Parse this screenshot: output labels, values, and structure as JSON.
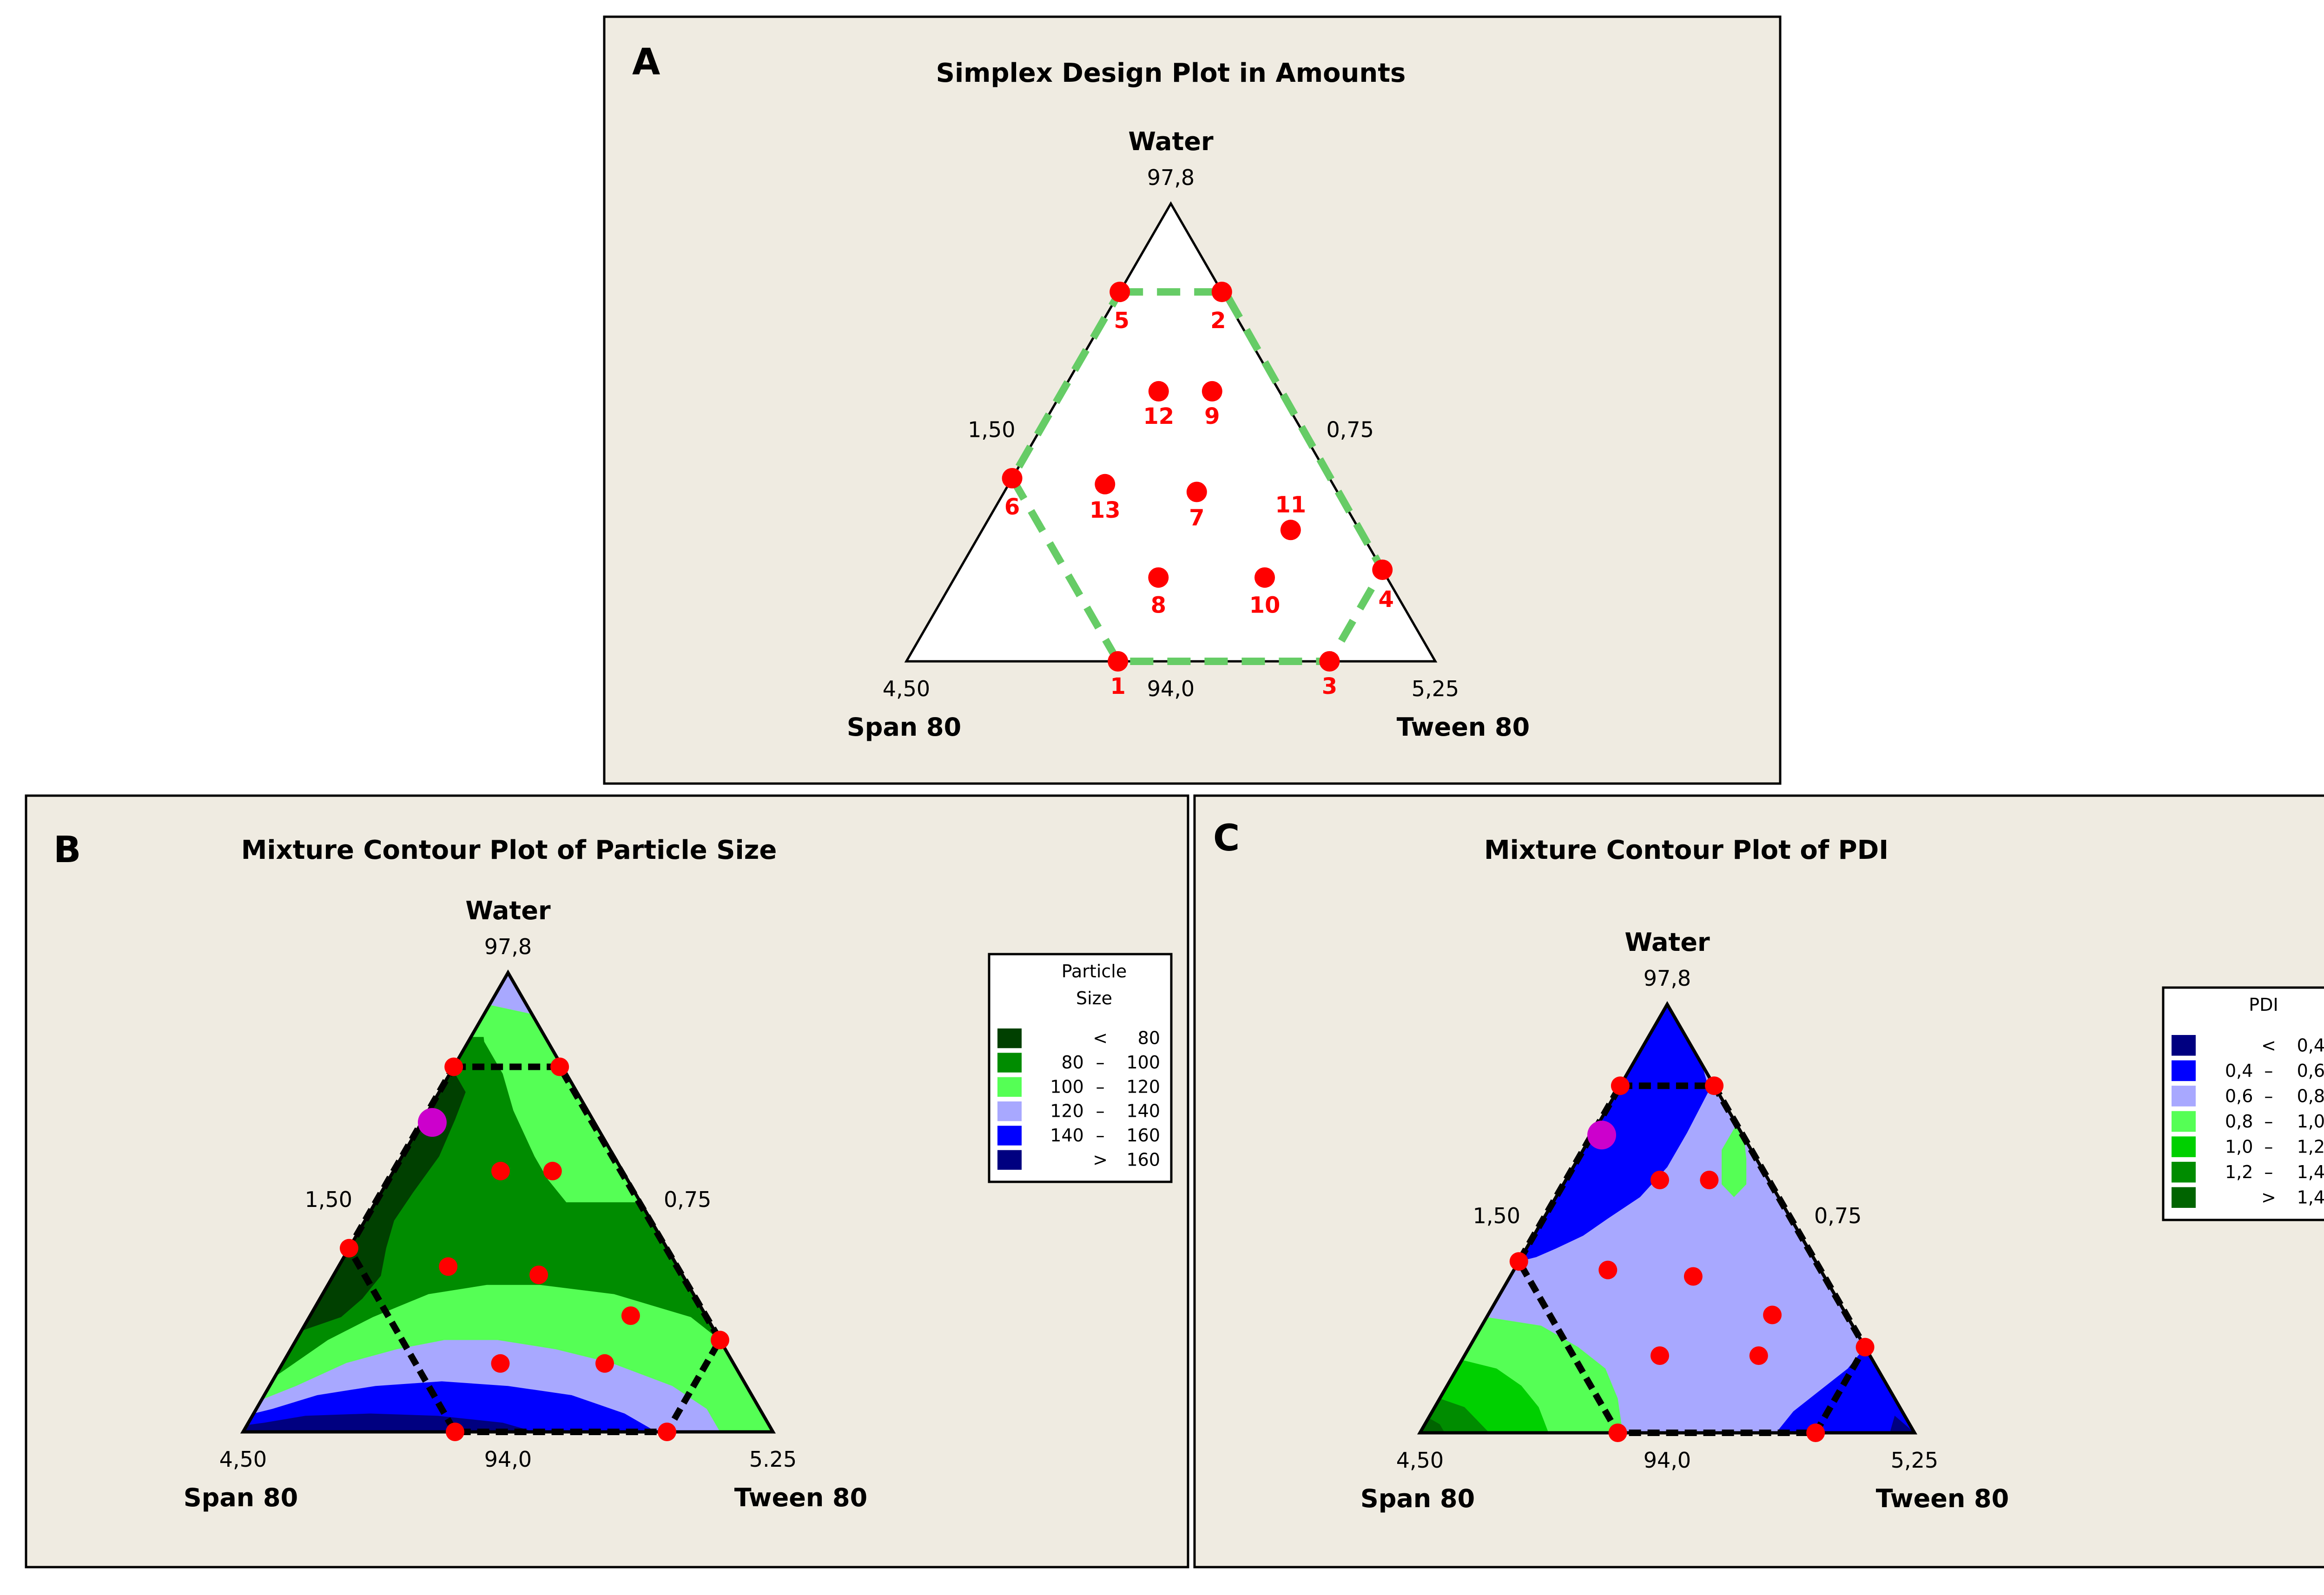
{
  "figure": {
    "background": "#efebe1",
    "point_color": "#ff0000",
    "optimum_color": "#cc00cc",
    "constraint_color_A": "#66cc66",
    "constraint_color_BC": "#000000"
  },
  "chart_data": [
    {
      "id": "A",
      "panel_letter": "A",
      "type": "scatter",
      "subtype": "ternary",
      "title": "Simplex Design Plot in Amounts",
      "components": {
        "top": "Water",
        "left": "Span 80",
        "right": "Tween 80"
      },
      "tick_labels": {
        "apex": "97,8",
        "left_vertex": "4,50",
        "right_vertex": "5,25",
        "base_mid": "94,0",
        "left_mid": "1,50",
        "right_mid": "0,75"
      },
      "coordinate_note": "points as pseudo-component fractions [water, tween]; span = 1 - water - tween",
      "constraint_region": [
        [
          0.807,
          0.0
        ],
        [
          0.807,
          0.199
        ],
        [
          0.2,
          0.8
        ],
        [
          0.0,
          0.8
        ],
        [
          0.0,
          0.4
        ],
        [
          0.4,
          0.0
        ]
      ],
      "points": [
        {
          "label": "1",
          "water": 0.0,
          "tween": 0.4
        },
        {
          "label": "2",
          "water": 0.807,
          "tween": 0.193
        },
        {
          "label": "3",
          "water": 0.0,
          "tween": 0.8
        },
        {
          "label": "4",
          "water": 0.2,
          "tween": 0.8
        },
        {
          "label": "5",
          "water": 0.807,
          "tween": 0.0
        },
        {
          "label": "6",
          "water": 0.4,
          "tween": 0.0
        },
        {
          "label": "7",
          "water": 0.37,
          "tween": 0.364
        },
        {
          "label": "8",
          "water": 0.183,
          "tween": 0.385
        },
        {
          "label": "9",
          "water": 0.59,
          "tween": 0.283
        },
        {
          "label": "10",
          "water": 0.183,
          "tween": 0.586
        },
        {
          "label": "11",
          "water": 0.287,
          "tween": 0.583
        },
        {
          "label": "12",
          "water": 0.59,
          "tween": 0.182
        },
        {
          "label": "13",
          "water": 0.387,
          "tween": 0.182
        }
      ]
    },
    {
      "id": "B",
      "panel_letter": "B",
      "type": "heatmap",
      "subtype": "ternary-contour",
      "title": "Mixture Contour Plot of Particle Size",
      "components": {
        "top": "Water",
        "left": "Span 80",
        "right": "Tween 80"
      },
      "tick_labels": {
        "apex": "97,8",
        "left_vertex": "4,50",
        "right_vertex": "5.25",
        "base_mid": "94,0",
        "left_mid": "1,50",
        "right_mid": "0,75"
      },
      "legend": {
        "title_lines": [
          "Particle",
          "Size"
        ],
        "placement": "right",
        "levels": [
          {
            "low": "",
            "op": "<",
            "high": "80",
            "color": "#004000"
          },
          {
            "low": "80",
            "op": "–",
            "high": "100",
            "color": "#008c00"
          },
          {
            "low": "100",
            "op": "–",
            "high": "120",
            "color": "#55ff55"
          },
          {
            "low": "120",
            "op": "–",
            "high": "140",
            "color": "#a8a8ff"
          },
          {
            "low": "140",
            "op": "–",
            "high": "160",
            "color": "#0000ff"
          },
          {
            "low": "",
            "op": ">",
            "high": "160",
            "color": "#000080"
          }
        ]
      },
      "regions": [
        {
          "level": "80–100",
          "color": "#008c00",
          "poly": [
            [
              0,
              0
            ],
            [
              0,
              1
            ],
            [
              1,
              0
            ]
          ]
        },
        {
          "level": "100–120",
          "color": "#55ff55",
          "poly": [
            [
              0.86,
              0.0
            ],
            [
              0.86,
              0.14
            ],
            [
              1.0,
              0.0
            ]
          ]
        },
        {
          "level": "100–120",
          "color": "#55ff55",
          "poly": [
            [
              0.9,
              0.0
            ],
            [
              0.85,
              0.03
            ],
            [
              0.78,
              0.1
            ],
            [
              0.7,
              0.16
            ],
            [
              0.6,
              0.25
            ],
            [
              0.55,
              0.3
            ],
            [
              0.5,
              0.36
            ],
            [
              0.5,
              0.5
            ],
            [
              1.0,
              0.0
            ]
          ]
        },
        {
          "level": "120–140",
          "color": "#a8a8ff",
          "poly": [
            [
              0.93,
              0.0
            ],
            [
              0.91,
              0.09
            ],
            [
              1.0,
              0.0
            ]
          ]
        },
        {
          "level": "<80",
          "color": "#004000",
          "poly": [
            [
              0.79,
              0.0
            ],
            [
              0.74,
              0.05
            ],
            [
              0.68,
              0.06
            ],
            [
              0.6,
              0.07
            ],
            [
              0.52,
              0.06
            ],
            [
              0.46,
              0.055
            ],
            [
              0.4,
              0.07
            ],
            [
              0.34,
              0.09
            ],
            [
              0.29,
              0.08
            ],
            [
              0.25,
              0.06
            ],
            [
              0.22,
              0.0
            ]
          ]
        },
        {
          "level": "100–120",
          "color": "#55ff55",
          "poly": [
            [
              0.0,
              1.0
            ],
            [
              0.2,
              0.8
            ],
            [
              0.25,
              0.72
            ],
            [
              0.3,
              0.55
            ],
            [
              0.32,
              0.4
            ],
            [
              0.32,
              0.3
            ],
            [
              0.3,
              0.2
            ],
            [
              0.25,
              0.12
            ],
            [
              0.2,
              0.06
            ],
            [
              0.12,
              0.0
            ],
            [
              0.0,
              0.0
            ]
          ]
        },
        {
          "level": "120–140",
          "color": "#a8a8ff",
          "poly": [
            [
              0.0,
              0.9
            ],
            [
              0.05,
              0.85
            ],
            [
              0.1,
              0.76
            ],
            [
              0.15,
              0.62
            ],
            [
              0.18,
              0.5
            ],
            [
              0.2,
              0.38
            ],
            [
              0.2,
              0.28
            ],
            [
              0.18,
              0.2
            ],
            [
              0.15,
              0.12
            ],
            [
              0.1,
              0.05
            ],
            [
              0.07,
              0.0
            ],
            [
              0.0,
              0.0
            ]
          ]
        },
        {
          "level": "140–160",
          "color": "#0000ff",
          "poly": [
            [
              0.0,
              0.78
            ],
            [
              0.04,
              0.7
            ],
            [
              0.08,
              0.58
            ],
            [
              0.1,
              0.45
            ],
            [
              0.11,
              0.32
            ],
            [
              0.1,
              0.2
            ],
            [
              0.08,
              0.1
            ],
            [
              0.05,
              0.03
            ],
            [
              0.04,
              0.0
            ],
            [
              0.0,
              0.0
            ]
          ]
        },
        {
          "level": ">160",
          "color": "#000080",
          "poly": [
            [
              0.0,
              0.55
            ],
            [
              0.02,
              0.48
            ],
            [
              0.035,
              0.35
            ],
            [
              0.04,
              0.22
            ],
            [
              0.035,
              0.1
            ],
            [
              0.02,
              0.03
            ],
            [
              0.015,
              0.0
            ],
            [
              0.0,
              0.0
            ]
          ]
        }
      ],
      "constraint_region": [
        [
          0.795,
          0.0
        ],
        [
          0.795,
          0.2
        ],
        [
          0.2,
          0.8
        ],
        [
          0.0,
          0.8
        ],
        [
          0.0,
          0.4
        ],
        [
          0.4,
          0.0
        ]
      ],
      "optimum": {
        "water": 0.674,
        "tween": 0.02
      },
      "points": [
        {
          "water": 0.795,
          "tween": 0.0
        },
        {
          "water": 0.795,
          "tween": 0.2
        },
        {
          "water": 0.568,
          "tween": 0.202
        },
        {
          "water": 0.568,
          "tween": 0.3
        },
        {
          "water": 0.4,
          "tween": 0.0
        },
        {
          "water": 0.36,
          "tween": 0.207
        },
        {
          "water": 0.342,
          "tween": 0.387
        },
        {
          "water": 0.253,
          "tween": 0.605
        },
        {
          "water": 0.2,
          "tween": 0.8
        },
        {
          "water": 0.149,
          "tween": 0.411
        },
        {
          "water": 0.149,
          "tween": 0.608
        },
        {
          "water": 0.0,
          "tween": 0.4
        },
        {
          "water": 0.0,
          "tween": 0.8
        }
      ]
    },
    {
      "id": "C",
      "panel_letter": "C",
      "type": "heatmap",
      "subtype": "ternary-contour",
      "title": "Mixture Contour Plot of PDI",
      "components": {
        "top": "Water",
        "left": "Span 80",
        "right": "Tween 80"
      },
      "tick_labels": {
        "apex": "97,8",
        "left_vertex": "4,50",
        "right_vertex": "5,25",
        "base_mid": "94,0",
        "left_mid": "1,50",
        "right_mid": "0,75"
      },
      "legend": {
        "title_lines": [
          "PDI"
        ],
        "placement": "right",
        "levels": [
          {
            "low": "",
            "op": "<",
            "high": "0,4",
            "color": "#000080"
          },
          {
            "low": "0,4",
            "op": "–",
            "high": "0,6",
            "color": "#0000ff"
          },
          {
            "low": "0,6",
            "op": "–",
            "high": "0,8",
            "color": "#a8a8ff"
          },
          {
            "low": "0,8",
            "op": "–",
            "high": "1,0",
            "color": "#55ff55"
          },
          {
            "low": "1,0",
            "op": "–",
            "high": "1,2",
            "color": "#00d000"
          },
          {
            "low": "1,2",
            "op": "–",
            "high": "1,4",
            "color": "#008c00"
          },
          {
            "low": "",
            "op": ">",
            "high": "1,4",
            "color": "#006400"
          }
        ]
      },
      "regions": [
        {
          "level": "0,6–0,8",
          "color": "#a8a8ff",
          "poly": [
            [
              0,
              0
            ],
            [
              0,
              1
            ],
            [
              1,
              0
            ]
          ]
        },
        {
          "level": "0,4–0,6",
          "color": "#0000ff",
          "poly": [
            [
              1.0,
              0.0
            ],
            [
              0.86,
              0.14
            ],
            [
              0.8,
              0.185
            ],
            [
              0.7,
              0.19
            ],
            [
              0.62,
              0.19
            ],
            [
              0.55,
              0.17
            ],
            [
              0.5,
              0.13
            ],
            [
              0.46,
              0.1
            ],
            [
              0.43,
              0.06
            ],
            [
              0.41,
              0.03
            ],
            [
              0.4,
              0.0
            ]
          ]
        },
        {
          "level": "0,8–1,0",
          "color": "#55ff55",
          "poly": [
            [
              0.72,
              0.28
            ],
            [
              0.66,
              0.28
            ],
            [
              0.58,
              0.32
            ],
            [
              0.55,
              0.36
            ],
            [
              0.58,
              0.37
            ],
            [
              0.64,
              0.34
            ],
            [
              0.69,
              0.31
            ]
          ]
        },
        {
          "level": "0,4–0,6",
          "color": "#0000ff",
          "poly": [
            [
              0.0,
              0.72
            ],
            [
              0.05,
              0.73
            ],
            [
              0.1,
              0.76
            ],
            [
              0.15,
              0.79
            ],
            [
              0.2,
              0.8
            ],
            [
              0.0,
              1.0
            ]
          ]
        },
        {
          "level": "<0,4",
          "color": "#000080",
          "poly": [
            [
              0.0,
              0.95
            ],
            [
              0.04,
              0.94
            ],
            [
              0.0,
              1.0
            ]
          ]
        },
        {
          "level": "0,8–1,0",
          "color": "#55ff55",
          "poly": [
            [
              0.0,
              0.0
            ],
            [
              0.27,
              0.0
            ],
            [
              0.25,
              0.12
            ],
            [
              0.2,
              0.22
            ],
            [
              0.15,
              0.3
            ],
            [
              0.08,
              0.36
            ],
            [
              0.0,
              0.41
            ]
          ]
        },
        {
          "level": "1,0–1,2",
          "color": "#00d000",
          "poly": [
            [
              0.0,
              0.0
            ],
            [
              0.17,
              0.0
            ],
            [
              0.15,
              0.08
            ],
            [
              0.11,
              0.15
            ],
            [
              0.06,
              0.21
            ],
            [
              0.0,
              0.26
            ]
          ]
        },
        {
          "level": "1,2–1,4",
          "color": "#008c00",
          "poly": [
            [
              0.0,
              0.0
            ],
            [
              0.08,
              0.0
            ],
            [
              0.06,
              0.06
            ],
            [
              0.03,
              0.1
            ],
            [
              0.0,
              0.14
            ]
          ]
        },
        {
          "level": ">1,4",
          "color": "#006400",
          "poly": [
            [
              0.0,
              0.0
            ],
            [
              0.035,
              0.0
            ],
            [
              0.02,
              0.03
            ],
            [
              0.0,
              0.05
            ]
          ]
        }
      ],
      "constraint_region": [
        [
          0.81,
          0.0
        ],
        [
          0.81,
          0.19
        ],
        [
          0.2,
          0.8
        ],
        [
          0.0,
          0.8
        ],
        [
          0.0,
          0.4
        ],
        [
          0.4,
          0.0
        ]
      ],
      "optimum": {
        "water": 0.695,
        "tween": 0.02
      },
      "points": [
        {
          "water": 0.81,
          "tween": 0.0
        },
        {
          "water": 0.81,
          "tween": 0.19
        },
        {
          "water": 0.59,
          "tween": 0.19
        },
        {
          "water": 0.59,
          "tween": 0.29
        },
        {
          "water": 0.4,
          "tween": 0.0
        },
        {
          "water": 0.38,
          "tween": 0.19
        },
        {
          "water": 0.365,
          "tween": 0.37
        },
        {
          "water": 0.275,
          "tween": 0.575
        },
        {
          "water": 0.2,
          "tween": 0.8
        },
        {
          "water": 0.18,
          "tween": 0.395
        },
        {
          "water": 0.18,
          "tween": 0.595
        },
        {
          "water": 0.0,
          "tween": 0.4
        },
        {
          "water": 0.0,
          "tween": 0.8
        }
      ]
    }
  ]
}
